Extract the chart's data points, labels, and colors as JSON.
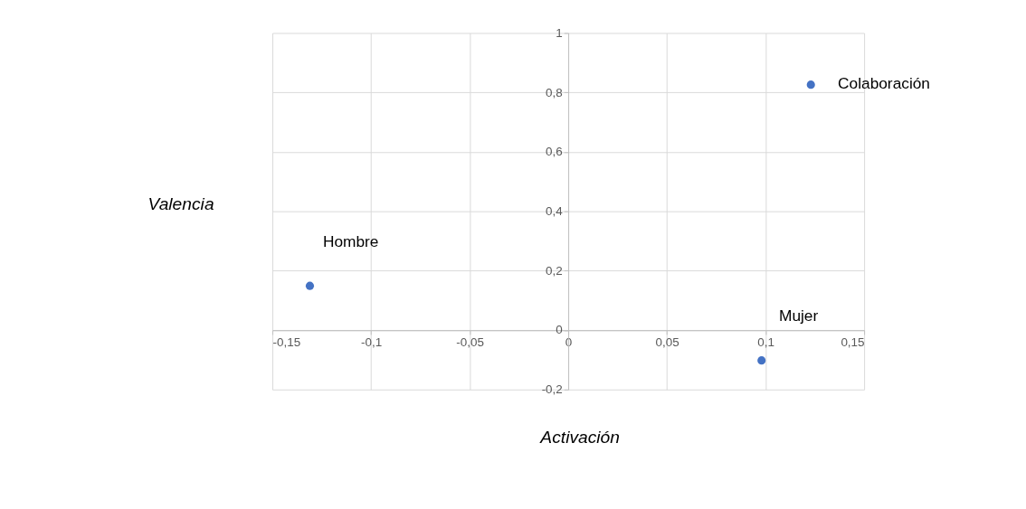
{
  "chart_data": {
    "type": "scatter",
    "xlabel": "Activación",
    "ylabel": "Valencia",
    "series": [
      {
        "color": "#4472c4",
        "x": [
          -0.131,
          0.098,
          0.123
        ],
        "values": [
          0.149,
          -0.102,
          0.826
        ]
      }
    ],
    "annotations": [
      {
        "text": "Hombre",
        "x": -0.131,
        "y": 0.149
      },
      {
        "text": "Mujer",
        "x": 0.098,
        "y": -0.102
      },
      {
        "text": "Colaboración",
        "x": 0.123,
        "y": 0.826
      }
    ],
    "xlim": [
      -0.15,
      0.15
    ],
    "ylim": [
      -0.2,
      1
    ],
    "xticks": [
      {
        "value": -0.15,
        "label": "-0,15"
      },
      {
        "value": -0.1,
        "label": "-0,1"
      },
      {
        "value": -0.05,
        "label": "-0,05"
      },
      {
        "value": 0,
        "label": "0"
      },
      {
        "value": 0.05,
        "label": "0,05"
      },
      {
        "value": 0.1,
        "label": "0,1"
      },
      {
        "value": 0.15,
        "label": "0,15"
      }
    ],
    "yticks": [
      {
        "value": -0.2,
        "label": "-0,2"
      },
      {
        "value": 0,
        "label": "0"
      },
      {
        "value": 0.2,
        "label": "0,2"
      },
      {
        "value": 0.4,
        "label": "0,4"
      },
      {
        "value": 0.6,
        "label": "0,6"
      },
      {
        "value": 0.8,
        "label": "0,8"
      },
      {
        "value": 1,
        "label": "1"
      }
    ],
    "grid": true,
    "marker": "circle"
  }
}
